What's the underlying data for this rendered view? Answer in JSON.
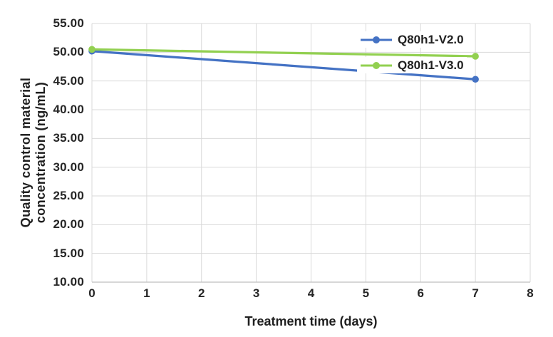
{
  "chart_data": {
    "type": "line",
    "xlabel": "Treatment time (days)",
    "ylabel": "Quality control material concentration (ng/mL)",
    "ylabel_lines": [
      "Quality control material",
      "concentration (ng/mL)"
    ],
    "xlim": [
      0,
      8
    ],
    "ylim": [
      10,
      55
    ],
    "x_ticks": [
      0,
      1,
      2,
      3,
      4,
      5,
      6,
      7,
      8
    ],
    "x_tick_labels": [
      "0",
      "1",
      "2",
      "3",
      "4",
      "5",
      "6",
      "7",
      "8"
    ],
    "y_ticks": [
      10,
      15,
      20,
      25,
      30,
      35,
      40,
      45,
      50,
      55
    ],
    "y_tick_labels": [
      "10.00",
      "15.00",
      "20.00",
      "25.00",
      "30.00",
      "35.00",
      "40.00",
      "45.00",
      "50.00",
      "55.00"
    ],
    "grid": true,
    "legend_position": "inside-top-right",
    "series": [
      {
        "name": "Q80h1-V2.0",
        "color": "#4472C4",
        "x": [
          0,
          7
        ],
        "y": [
          50.2,
          45.3
        ]
      },
      {
        "name": "Q80h1-V3.0",
        "color": "#92D050",
        "x": [
          0,
          7
        ],
        "y": [
          50.5,
          49.3
        ]
      }
    ],
    "colors": {
      "gridline": "#D9D9D9",
      "axis_line": "#BFBFBF",
      "tick_text": "#262626",
      "title_text": "#1F1F1F",
      "background": "#FFFFFF"
    }
  }
}
